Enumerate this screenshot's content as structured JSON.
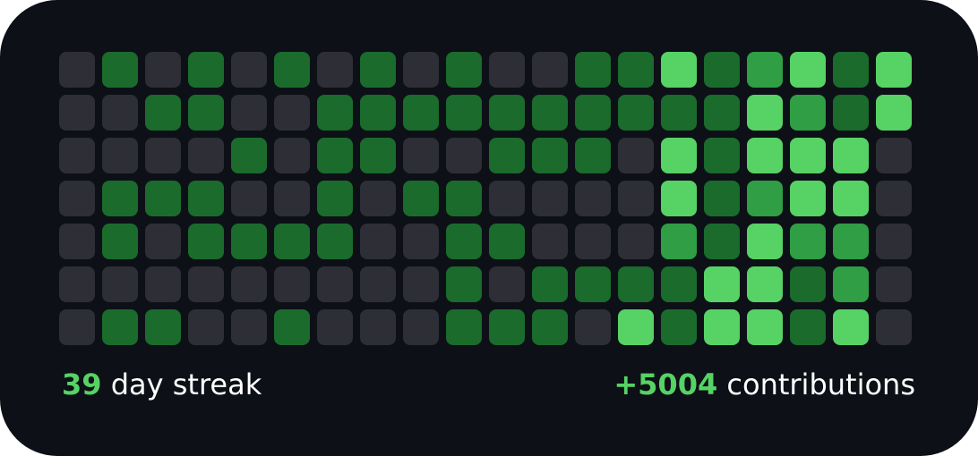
{
  "colors": {
    "background": "#0d1017",
    "level0": "#2e2e37",
    "level1": "#1a6b2c",
    "level2": "#2f9e44",
    "level3": "#56d364",
    "accent": "#56d364",
    "text": "#ffffff"
  },
  "contribution_grid": {
    "levels": [
      [
        0,
        1,
        0,
        1,
        0,
        1,
        0,
        1,
        0,
        1,
        0,
        0,
        1,
        1,
        3,
        1,
        2,
        3,
        1,
        3
      ],
      [
        0,
        0,
        1,
        1,
        0,
        0,
        1,
        1,
        1,
        1,
        1,
        1,
        1,
        1,
        1,
        1,
        3,
        2,
        1,
        3
      ],
      [
        0,
        0,
        0,
        0,
        1,
        0,
        1,
        1,
        0,
        0,
        1,
        1,
        1,
        0,
        3,
        1,
        3,
        3,
        3,
        0
      ],
      [
        0,
        1,
        1,
        1,
        0,
        0,
        1,
        0,
        1,
        1,
        0,
        0,
        0,
        0,
        3,
        1,
        2,
        3,
        3,
        0
      ],
      [
        0,
        1,
        0,
        1,
        1,
        1,
        1,
        0,
        0,
        1,
        1,
        0,
        0,
        0,
        2,
        1,
        3,
        2,
        2,
        0
      ],
      [
        0,
        0,
        0,
        0,
        0,
        0,
        0,
        0,
        0,
        1,
        0,
        1,
        1,
        1,
        1,
        3,
        3,
        1,
        2,
        0
      ],
      [
        0,
        1,
        1,
        0,
        0,
        1,
        0,
        0,
        0,
        1,
        1,
        1,
        0,
        3,
        1,
        3,
        3,
        1,
        3,
        0
      ]
    ]
  },
  "stats": {
    "streak_value": "39",
    "streak_label": "day streak",
    "contributions_value": "+5004",
    "contributions_label": "contributions"
  }
}
